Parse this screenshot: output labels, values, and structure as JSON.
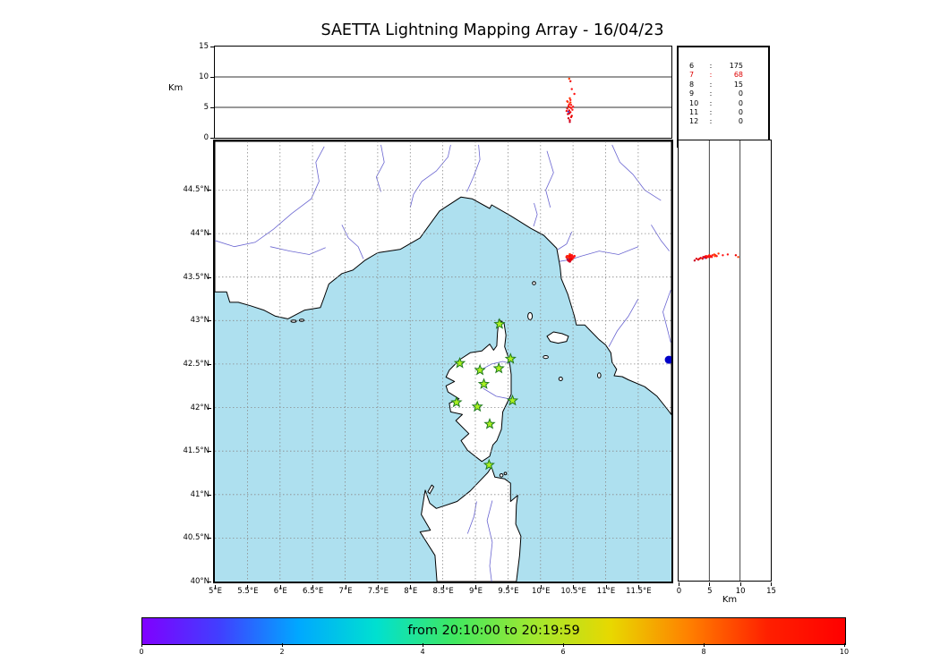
{
  "title": "SAETTA Lightning Mapping Array - 16/04/23",
  "colors": {
    "sea": "#aee0ef",
    "land": "#ffffff",
    "coast": "#000000",
    "river": "#5a55cc",
    "grid": "#8a8a8a",
    "panel_line": "#333333",
    "station_fill": "#aaf020",
    "station_edge": "#1f7a1f",
    "highlight_count": "#dd0000",
    "extra_marker": "#0000c8"
  },
  "alt_panel": {
    "ylabel": "Km",
    "yticks": [
      {
        "v": 0,
        "label": "0"
      },
      {
        "v": 5,
        "label": "5"
      },
      {
        "v": 10,
        "label": "10"
      },
      {
        "v": 15,
        "label": "15"
      }
    ]
  },
  "map_panel": {
    "lon_ticks": [
      {
        "v": 5,
        "label": "5°E"
      },
      {
        "v": 5.5,
        "label": "5.5°E"
      },
      {
        "v": 6,
        "label": "6°E"
      },
      {
        "v": 6.5,
        "label": "6.5°E"
      },
      {
        "v": 7,
        "label": "7°E"
      },
      {
        "v": 7.5,
        "label": "7.5°E"
      },
      {
        "v": 8,
        "label": "8°E"
      },
      {
        "v": 8.5,
        "label": "8.5°E"
      },
      {
        "v": 9,
        "label": "9°E"
      },
      {
        "v": 9.5,
        "label": "9.5°E"
      },
      {
        "v": 10,
        "label": "10°E"
      },
      {
        "v": 10.5,
        "label": "10.5°E"
      },
      {
        "v": 11,
        "label": "11°E"
      },
      {
        "v": 11.5,
        "label": "11.5°E"
      }
    ],
    "lat_ticks": [
      {
        "v": 40,
        "label": "40°N"
      },
      {
        "v": 40.5,
        "label": "40.5°N"
      },
      {
        "v": 41,
        "label": "41°N"
      },
      {
        "v": 41.5,
        "label": "41.5°N"
      },
      {
        "v": 42,
        "label": "42°N"
      },
      {
        "v": 42.5,
        "label": "42.5°N"
      },
      {
        "v": 43,
        "label": "43°N"
      },
      {
        "v": 43.5,
        "label": "43.5°N"
      },
      {
        "v": 44,
        "label": "44°N"
      },
      {
        "v": 44.5,
        "label": "44.5°N"
      }
    ]
  },
  "alt_lat_panel": {
    "xlabel": "Km",
    "xticks": [
      {
        "v": 0,
        "label": "0"
      },
      {
        "v": 5,
        "label": "5"
      },
      {
        "v": 10,
        "label": "10"
      },
      {
        "v": 15,
        "label": "15"
      }
    ]
  },
  "colorbar": {
    "label": "from 20:10:00 to 20:19:59",
    "ticks": [
      {
        "v": 0,
        "label": "0"
      },
      {
        "v": 2,
        "label": "2"
      },
      {
        "v": 4,
        "label": "4"
      },
      {
        "v": 6,
        "label": "6"
      },
      {
        "v": 8,
        "label": "8"
      },
      {
        "v": 10,
        "label": "10"
      }
    ],
    "stops": [
      "#8000ff",
      "#4040ff",
      "#00a8ff",
      "#00e0d0",
      "#40e860",
      "#a0e830",
      "#e8d800",
      "#ff8000",
      "#ff2000",
      "#ff0000"
    ]
  },
  "chart_data": {
    "type": "scatter",
    "title": "SAETTA Lightning Mapping Array - 16/04/23",
    "panels": [
      {
        "id": "lon_alt",
        "x": "longitude_deg_E",
        "y": "altitude_km",
        "xlim": [
          5,
          12
        ],
        "ylim": [
          0,
          15
        ]
      },
      {
        "id": "map",
        "x": "longitude_deg_E",
        "y": "latitude_deg_N",
        "xlim": [
          5,
          12
        ],
        "ylim": [
          40,
          45
        ]
      },
      {
        "id": "alt_lat",
        "x": "altitude_km",
        "y": "latitude_deg_N",
        "xlim": [
          0,
          15
        ],
        "ylim": [
          40,
          45
        ]
      }
    ],
    "time_window": {
      "from": "20:10:00",
      "to": "20:19:59",
      "colorbar_range": [
        0,
        10
      ]
    },
    "counts": [
      {
        "key": "6",
        "value": "175",
        "red": false
      },
      {
        "key": "7",
        "value": "68",
        "red": true
      },
      {
        "key": "8",
        "value": "15",
        "red": false
      },
      {
        "key": "9",
        "value": "0",
        "red": false
      },
      {
        "key": "10",
        "value": "0",
        "red": false
      },
      {
        "key": "11",
        "value": "0",
        "red": false
      },
      {
        "key": "12",
        "value": "0",
        "red": false
      }
    ],
    "stations": [
      {
        "lon": 9.37,
        "lat": 42.96
      },
      {
        "lon": 8.76,
        "lat": 42.51
      },
      {
        "lon": 9.07,
        "lat": 42.43
      },
      {
        "lon": 9.36,
        "lat": 42.45
      },
      {
        "lon": 9.54,
        "lat": 42.56
      },
      {
        "lon": 9.13,
        "lat": 42.27
      },
      {
        "lon": 8.71,
        "lat": 42.06
      },
      {
        "lon": 9.03,
        "lat": 42.01
      },
      {
        "lon": 9.57,
        "lat": 42.08
      },
      {
        "lon": 9.22,
        "lat": 41.81
      },
      {
        "lon": 9.21,
        "lat": 41.34
      }
    ],
    "sources": [
      {
        "lon": 10.4,
        "lat": 43.73,
        "alt": 4.4,
        "c": "#ff1414"
      },
      {
        "lon": 10.41,
        "lat": 43.72,
        "alt": 4.8,
        "c": "#f01010"
      },
      {
        "lon": 10.41,
        "lat": 43.74,
        "alt": 6.0,
        "c": "#ff1414"
      },
      {
        "lon": 10.42,
        "lat": 43.7,
        "alt": 3.9,
        "c": "#e60000"
      },
      {
        "lon": 10.42,
        "lat": 43.73,
        "alt": 5.9,
        "c": "#ff4600"
      },
      {
        "lon": 10.43,
        "lat": 43.69,
        "alt": 3.2,
        "c": "#d40014"
      },
      {
        "lon": 10.43,
        "lat": 43.71,
        "alt": 4.3,
        "c": "#3a46e6"
      },
      {
        "lon": 10.43,
        "lat": 43.73,
        "alt": 5.2,
        "c": "#ff1414"
      },
      {
        "lon": 10.44,
        "lat": 43.71,
        "alt": 4.5,
        "c": "#ee0000"
      },
      {
        "lon": 10.44,
        "lat": 43.72,
        "alt": 4.0,
        "c": "#c80032"
      },
      {
        "lon": 10.44,
        "lat": 43.74,
        "alt": 5.5,
        "c": "#ff1414"
      },
      {
        "lon": 10.44,
        "lat": 43.72,
        "alt": 9.7,
        "c": "#ff3c00"
      },
      {
        "lon": 10.45,
        "lat": 43.68,
        "alt": 2.6,
        "c": "#cc0022"
      },
      {
        "lon": 10.45,
        "lat": 43.7,
        "alt": 2.9,
        "c": "#dd0011"
      },
      {
        "lon": 10.45,
        "lat": 43.74,
        "alt": 5.0,
        "c": "#ff2800"
      },
      {
        "lon": 10.45,
        "lat": 43.76,
        "alt": 6.5,
        "c": "#ff3200"
      },
      {
        "lon": 10.46,
        "lat": 43.72,
        "alt": 4.2,
        "c": "#ee0000"
      },
      {
        "lon": 10.46,
        "lat": 43.73,
        "alt": 6.2,
        "c": "#ff1414"
      },
      {
        "lon": 10.46,
        "lat": 43.75,
        "alt": 5.8,
        "c": "#ff3200"
      },
      {
        "lon": 10.46,
        "lat": 43.74,
        "alt": 9.3,
        "c": "#ee0000"
      },
      {
        "lon": 10.47,
        "lat": 43.7,
        "alt": 3.4,
        "c": "#ee0000"
      },
      {
        "lon": 10.47,
        "lat": 43.72,
        "alt": 5.4,
        "c": "#ff1414"
      },
      {
        "lon": 10.47,
        "lat": 43.73,
        "alt": 4.9,
        "c": "#ff1414"
      },
      {
        "lon": 10.48,
        "lat": 43.71,
        "alt": 3.6,
        "c": "#e60000"
      },
      {
        "lon": 10.48,
        "lat": 43.75,
        "alt": 8.0,
        "c": "#ff1414"
      },
      {
        "lon": 10.49,
        "lat": 43.73,
        "alt": 4.6,
        "c": "#ff1414"
      },
      {
        "lon": 10.5,
        "lat": 43.72,
        "alt": 5.1,
        "c": "#ff1414"
      },
      {
        "lon": 10.52,
        "lat": 43.74,
        "alt": 7.2,
        "c": "#ff1414"
      }
    ],
    "extra_marker": {
      "lon": 11.97,
      "lat": 42.55,
      "r": 4.5
    }
  }
}
